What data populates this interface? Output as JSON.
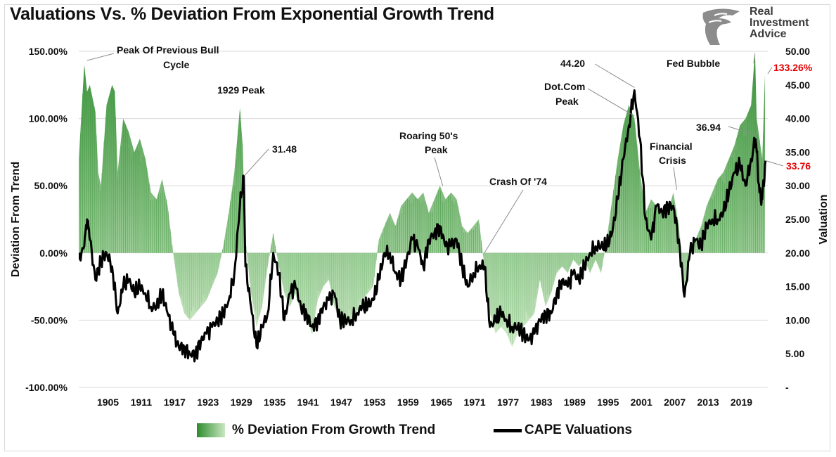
{
  "title": "Valuations Vs. % Deviation From Exponential Growth Trend",
  "logo": {
    "line1": "Real",
    "line2": "Investment",
    "line3": "Advice"
  },
  "colors": {
    "area_dark": "#2e8b2e",
    "area_light": "#cfeac7",
    "line": "#000000",
    "highlight": "#e60000",
    "grid": "#d9d9d9"
  },
  "chart_data": {
    "type": "area",
    "ylabel_left": "Deviation From Trend",
    "ylabel_right": "Valuation",
    "left_axis": {
      "range": [
        -100,
        150
      ],
      "ticks": [
        "150.00%",
        "100.00%",
        "50.00%",
        "0.00%",
        "-50.00%",
        "-100.00%"
      ],
      "tick_values": [
        150,
        100,
        50,
        0,
        -50,
        -100
      ]
    },
    "right_axis": {
      "range": [
        0,
        50
      ],
      "ticks": [
        "50.00",
        "45.00",
        "40.00",
        "35.00",
        "30.00",
        "25.00",
        "20.00",
        "15.00",
        "10.00",
        "5.00",
        "-"
      ],
      "tick_values": [
        50,
        45,
        40,
        35,
        30,
        25,
        20,
        15,
        10,
        5,
        0
      ]
    },
    "x_axis": {
      "range": [
        1900,
        2024
      ],
      "ticks": [
        "1905",
        "1911",
        "1917",
        "1923",
        "1929",
        "1935",
        "1941",
        "1947",
        "1953",
        "1959",
        "1965",
        "1971",
        "1977",
        "1983",
        "1989",
        "1995",
        "2001",
        "2007",
        "2013",
        "2019"
      ],
      "tick_values": [
        1905,
        1911,
        1917,
        1923,
        1929,
        1935,
        1941,
        1947,
        1953,
        1959,
        1965,
        1971,
        1977,
        1983,
        1989,
        1995,
        2001,
        2007,
        2013,
        2019
      ]
    },
    "grid": true,
    "legend_position": "bottom",
    "series": [
      {
        "name": "% Deviation From Growth Trend",
        "axis": "left",
        "style": "area",
        "x": [
          1900,
          1901,
          1901.5,
          1902,
          1903,
          1903.5,
          1904,
          1905,
          1906,
          1906.5,
          1907,
          1908,
          1909,
          1910,
          1911,
          1912,
          1913,
          1914,
          1915,
          1916,
          1917,
          1918,
          1919,
          1920,
          1921,
          1922,
          1923,
          1924,
          1925,
          1926,
          1927,
          1928,
          1929,
          1929.5,
          1930,
          1931,
          1932,
          1933,
          1934,
          1935,
          1936,
          1937,
          1938,
          1939,
          1940,
          1941,
          1942,
          1943,
          1944,
          1945,
          1946,
          1947,
          1948,
          1949,
          1950,
          1951,
          1952,
          1953,
          1954,
          1955,
          1956,
          1957,
          1958,
          1959,
          1960,
          1961,
          1962,
          1963,
          1964,
          1965,
          1966,
          1967,
          1968,
          1969,
          1970,
          1971,
          1972,
          1973,
          1974,
          1975,
          1976,
          1977,
          1978,
          1979,
          1980,
          1981,
          1982,
          1983,
          1984,
          1985,
          1986,
          1987,
          1988,
          1989,
          1990,
          1991,
          1992,
          1993,
          1994,
          1995,
          1996,
          1997,
          1998,
          1999,
          2000,
          2001,
          2002,
          2003,
          2004,
          2005,
          2006,
          2007,
          2008,
          2009,
          2010,
          2011,
          2012,
          2013,
          2014,
          2015,
          2016,
          2017,
          2018,
          2019,
          2020,
          2021,
          2021.7,
          2022,
          2023,
          2023.5
        ],
        "values": [
          70,
          140,
          120,
          125,
          105,
          60,
          50,
          110,
          125,
          120,
          60,
          100,
          90,
          75,
          85,
          70,
          45,
          40,
          55,
          35,
          0,
          -30,
          -45,
          -50,
          -45,
          -40,
          -35,
          -25,
          -15,
          5,
          30,
          60,
          108,
          80,
          10,
          -30,
          -55,
          -40,
          -10,
          15,
          -10,
          -30,
          -40,
          -30,
          -45,
          -50,
          -60,
          -35,
          -25,
          -20,
          -40,
          -50,
          -55,
          -50,
          -45,
          -35,
          -30,
          -25,
          10,
          20,
          30,
          20,
          35,
          40,
          45,
          40,
          45,
          30,
          40,
          50,
          40,
          45,
          40,
          20,
          15,
          20,
          25,
          -10,
          -45,
          -60,
          -55,
          -60,
          -70,
          -60,
          -55,
          -50,
          -45,
          -20,
          -40,
          -30,
          -15,
          -10,
          -15,
          -5,
          -10,
          -5,
          -15,
          -5,
          -15,
          10,
          40,
          70,
          95,
          110,
          100,
          60,
          30,
          40,
          35,
          30,
          30,
          45,
          20,
          -30,
          0,
          10,
          20,
          35,
          45,
          55,
          60,
          70,
          80,
          95,
          100,
          110,
          150,
          100,
          70,
          133.26
        ]
      },
      {
        "name": "CAPE Valuations",
        "axis": "right",
        "style": "line",
        "x": [
          1900,
          1901,
          1901.5,
          1902,
          1903,
          1904,
          1905,
          1906,
          1907,
          1908,
          1909,
          1910,
          1911,
          1912,
          1913,
          1914,
          1915,
          1916,
          1917,
          1918,
          1919,
          1920,
          1921,
          1922,
          1923,
          1924,
          1925,
          1926,
          1927,
          1928,
          1929,
          1929.7,
          1930,
          1931,
          1932,
          1933,
          1934,
          1935,
          1936,
          1937,
          1938,
          1939,
          1940,
          1941,
          1942,
          1943,
          1944,
          1945,
          1946,
          1947,
          1948,
          1949,
          1950,
          1951,
          1952,
          1953,
          1954,
          1955,
          1956,
          1957,
          1958,
          1959,
          1960,
          1961,
          1962,
          1963,
          1964,
          1965,
          1966,
          1967,
          1968,
          1969,
          1970,
          1971,
          1972,
          1973,
          1974,
          1975,
          1976,
          1977,
          1978,
          1979,
          1980,
          1981,
          1982,
          1983,
          1984,
          1985,
          1986,
          1987,
          1988,
          1989,
          1990,
          1991,
          1992,
          1993,
          1994,
          1995,
          1996,
          1997,
          1998,
          1999,
          2000,
          2001,
          2002,
          2003,
          2004,
          2005,
          2006,
          2007,
          2008,
          2009,
          2010,
          2011,
          2012,
          2013,
          2014,
          2015,
          2016,
          2017,
          2018,
          2019,
          2020,
          2021,
          2021.8,
          2022,
          2022.5,
          2023,
          2023.6
        ],
        "values": [
          19,
          21,
          25,
          22,
          16,
          19,
          20,
          18,
          11,
          15,
          16,
          14,
          15,
          14,
          12,
          12,
          14,
          11,
          8,
          6,
          6,
          5,
          5,
          7,
          8,
          9,
          10,
          11,
          13,
          17,
          27,
          31.48,
          18,
          12,
          6,
          9,
          11,
          20,
          17,
          10,
          14,
          15,
          12,
          11,
          9,
          10,
          12,
          13,
          14,
          10,
          10,
          10,
          11,
          12,
          12,
          13,
          16,
          20,
          20,
          17,
          16,
          19,
          22,
          21,
          18,
          22,
          23,
          24,
          21,
          21,
          22,
          18,
          15,
          17,
          18,
          18,
          9,
          10,
          11,
          10,
          9,
          9,
          8,
          7,
          8,
          10,
          11,
          11,
          14,
          16,
          15,
          17,
          16,
          18,
          20,
          21,
          21,
          21,
          23,
          28,
          34,
          39,
          44.2,
          37,
          25,
          22,
          27,
          26,
          27,
          27,
          22,
          13.5,
          20,
          22,
          21,
          24,
          25,
          25,
          26,
          29,
          32,
          33,
          30,
          34,
          36.94,
          35,
          29,
          28,
          33.76
        ]
      }
    ],
    "annotations": [
      {
        "text": "Peak Of Previous Bull Cycle",
        "x": 1901,
        "y": 145,
        "axis": "left"
      },
      {
        "text": "1929 Peak",
        "x": 1929.4,
        "y": 108,
        "axis": "left"
      },
      {
        "text": "31.48",
        "x": 1929.8,
        "y": 31.48,
        "axis": "right"
      },
      {
        "text": "Roaring 50's Peak",
        "x": 1965.5,
        "y": 50,
        "axis": "left"
      },
      {
        "text": "Crash Of '74",
        "x": 1973,
        "y": 0,
        "axis": "left"
      },
      {
        "text": "44.20",
        "x": 2000,
        "y": 44.2,
        "axis": "right"
      },
      {
        "text": "Dot.Com Peak",
        "x": 2000,
        "y": 100,
        "axis": "left"
      },
      {
        "text": "Financial Crisis",
        "x": 2007.6,
        "y": 47,
        "axis": "left"
      },
      {
        "text": "36.94",
        "x": 2021.9,
        "y": 36.94,
        "axis": "right"
      },
      {
        "text": "Fed Bubble",
        "x": 2021.7,
        "y": 148,
        "axis": "left"
      },
      {
        "text": "133.26%",
        "highlight": true
      },
      {
        "text": "33.76",
        "highlight": true
      }
    ]
  }
}
